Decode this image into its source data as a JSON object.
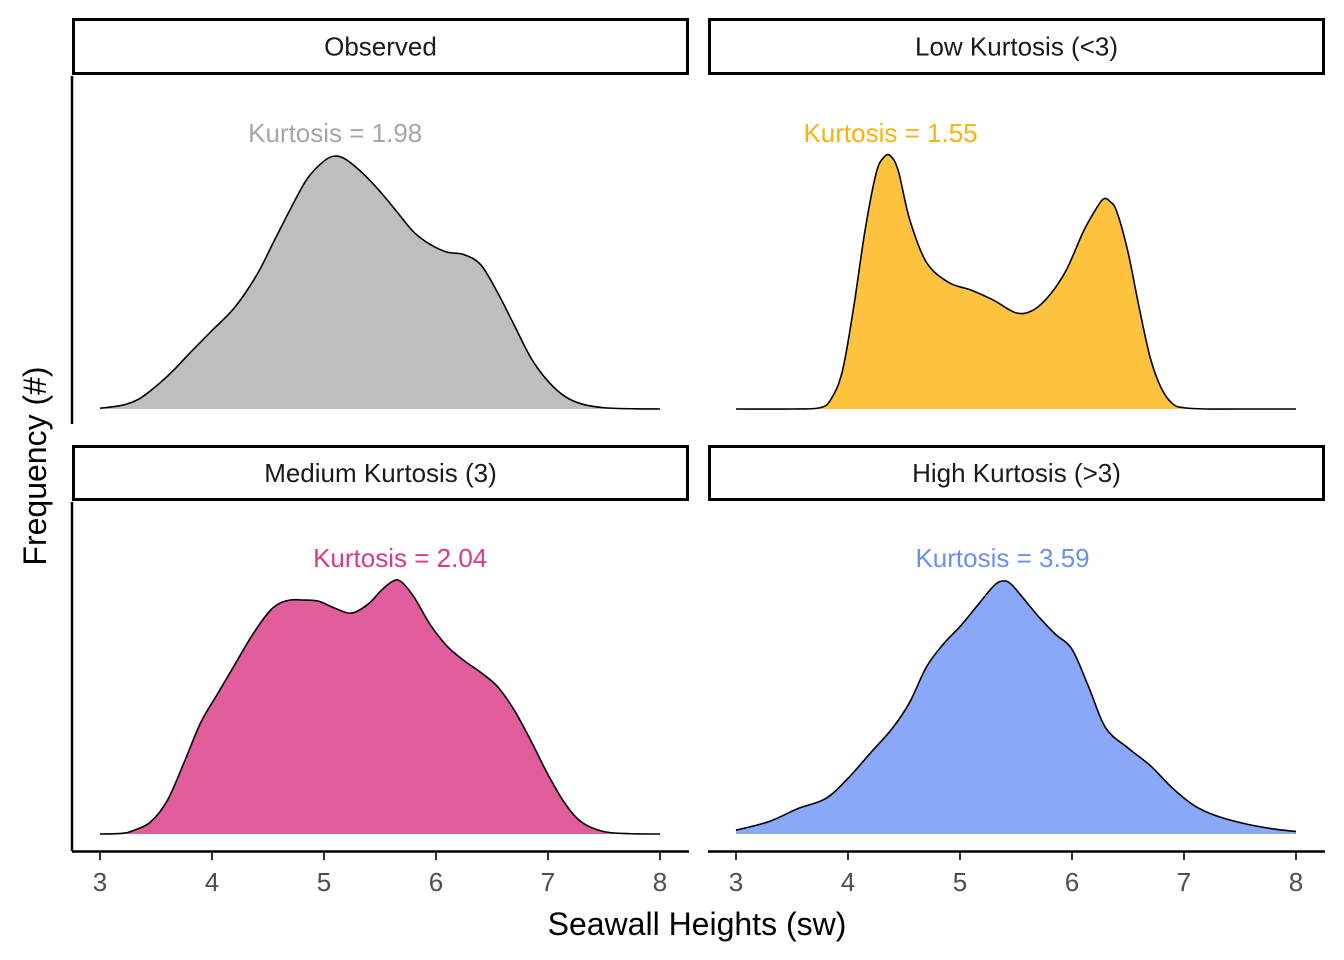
{
  "chart_data": {
    "type": "area",
    "xlabel": "Seawall Heights (sw)",
    "ylabel": "Frequency (#)",
    "xlim": [
      3,
      8
    ],
    "xticks": [
      3,
      4,
      5,
      6,
      7,
      8
    ],
    "panels": [
      {
        "strip": "Observed",
        "annotation": "Kurtosis = 1.98",
        "color": "#bebebe",
        "label_color": "#a6a6a6",
        "x": [
          3.0,
          3.2,
          3.35,
          3.5,
          3.65,
          3.8,
          4.0,
          4.2,
          4.4,
          4.55,
          4.7,
          4.85,
          5.0,
          5.1,
          5.2,
          5.35,
          5.5,
          5.65,
          5.8,
          5.95,
          6.1,
          6.25,
          6.4,
          6.55,
          6.7,
          6.85,
          7.0,
          7.15,
          7.3,
          7.5,
          7.75,
          8.0
        ],
        "density": [
          0.003,
          0.015,
          0.04,
          0.09,
          0.15,
          0.22,
          0.31,
          0.4,
          0.53,
          0.66,
          0.79,
          0.91,
          0.98,
          1.0,
          0.985,
          0.93,
          0.86,
          0.78,
          0.7,
          0.65,
          0.62,
          0.61,
          0.57,
          0.46,
          0.33,
          0.2,
          0.11,
          0.05,
          0.02,
          0.005,
          0.001,
          0.0
        ]
      },
      {
        "strip": "Low Kurtosis (<3)",
        "annotation": "Kurtosis = 1.55",
        "color": "#fdc23e",
        "label_color": "#f9b212",
        "x": [
          3.0,
          3.5,
          3.75,
          3.85,
          3.95,
          4.05,
          4.15,
          4.25,
          4.32,
          4.38,
          4.45,
          4.55,
          4.7,
          4.9,
          5.1,
          5.3,
          5.5,
          5.65,
          5.8,
          5.95,
          6.1,
          6.2,
          6.28,
          6.34,
          6.4,
          6.5,
          6.6,
          6.7,
          6.8,
          6.9,
          7.0,
          7.2,
          7.5,
          8.0
        ],
        "density": [
          0.0,
          0.0,
          0.005,
          0.04,
          0.15,
          0.4,
          0.7,
          0.93,
          0.995,
          1.0,
          0.94,
          0.75,
          0.58,
          0.5,
          0.47,
          0.43,
          0.38,
          0.39,
          0.45,
          0.55,
          0.7,
          0.78,
          0.83,
          0.82,
          0.78,
          0.62,
          0.4,
          0.2,
          0.08,
          0.02,
          0.005,
          0.0,
          0.0,
          0.0
        ]
      },
      {
        "strip": "Medium Kurtosis (3)",
        "annotation": "Kurtosis = 2.04",
        "color": "#e25d9c",
        "label_color": "#d93a88",
        "x": [
          3.0,
          3.2,
          3.3,
          3.45,
          3.6,
          3.75,
          3.9,
          4.05,
          4.2,
          4.35,
          4.5,
          4.6,
          4.7,
          4.8,
          4.95,
          5.1,
          5.25,
          5.4,
          5.5,
          5.6,
          5.68,
          5.8,
          5.95,
          6.1,
          6.25,
          6.4,
          6.55,
          6.7,
          6.85,
          7.0,
          7.15,
          7.3,
          7.5,
          7.75,
          8.0
        ],
        "density": [
          0.0,
          0.003,
          0.015,
          0.05,
          0.14,
          0.3,
          0.47,
          0.59,
          0.71,
          0.83,
          0.93,
          0.97,
          0.985,
          0.985,
          0.98,
          0.95,
          0.93,
          0.97,
          1.02,
          1.06,
          1.065,
          1.0,
          0.88,
          0.79,
          0.73,
          0.68,
          0.62,
          0.52,
          0.39,
          0.25,
          0.13,
          0.05,
          0.01,
          0.001,
          0.0
        ]
      },
      {
        "strip": "High Kurtosis (>3)",
        "annotation": "Kurtosis = 3.59",
        "color": "#8aa8f9",
        "label_color": "#6a8ff5",
        "x": [
          3.0,
          3.3,
          3.55,
          3.8,
          4.0,
          4.2,
          4.4,
          4.55,
          4.7,
          4.85,
          5.0,
          5.15,
          5.3,
          5.38,
          5.45,
          5.55,
          5.7,
          5.85,
          6.0,
          6.15,
          6.3,
          6.5,
          6.7,
          6.9,
          7.1,
          7.3,
          7.55,
          7.8,
          8.0
        ],
        "density": [
          0.015,
          0.05,
          0.1,
          0.14,
          0.22,
          0.32,
          0.42,
          0.52,
          0.66,
          0.75,
          0.82,
          0.9,
          0.98,
          1.0,
          0.99,
          0.94,
          0.86,
          0.79,
          0.73,
          0.58,
          0.42,
          0.34,
          0.27,
          0.18,
          0.11,
          0.07,
          0.04,
          0.02,
          0.01
        ]
      }
    ]
  }
}
